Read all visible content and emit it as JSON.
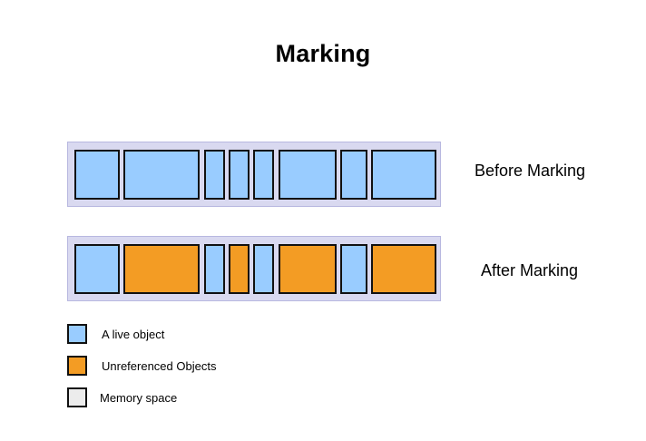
{
  "title": "Marking",
  "colors": {
    "live": "#99ccff",
    "unreferenced": "#f39c24",
    "memory_space": "#ececec",
    "memory_bar": "#d9d9f0",
    "border": "#111111"
  },
  "rows": [
    {
      "label": "Before Marking",
      "blocks": [
        "live",
        "live",
        "live",
        "live",
        "live",
        "live",
        "live",
        "live"
      ]
    },
    {
      "label": "After Marking",
      "blocks": [
        "live",
        "unreferenced",
        "live",
        "unreferenced",
        "live",
        "unreferenced",
        "live",
        "unreferenced"
      ]
    }
  ],
  "legend": [
    {
      "kind": "live",
      "label": "A live object"
    },
    {
      "kind": "unreferenced",
      "label": "Unreferenced Objects"
    },
    {
      "kind": "memory_space",
      "label": "Memory space"
    }
  ]
}
